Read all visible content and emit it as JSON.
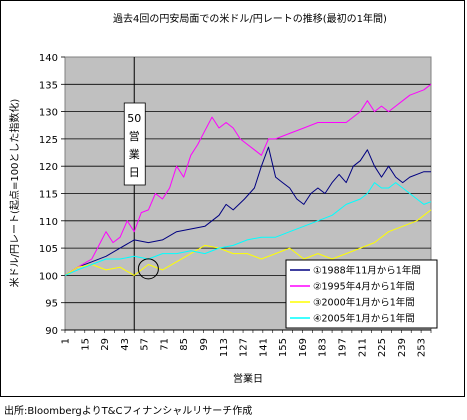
{
  "chart_data": {
    "type": "line",
    "title": "過去4回の円安局面での米ドル/円レートの推移(最初の1年間)",
    "xlabel": "営業日",
    "ylabel": "米ドル/円レート(起点=100とした指数化)",
    "ylim": [
      90,
      140
    ],
    "yticks": [
      90,
      95,
      100,
      105,
      110,
      115,
      120,
      125,
      130,
      135,
      140
    ],
    "xlim": [
      1,
      260
    ],
    "xticks": [
      1,
      15,
      29,
      43,
      57,
      71,
      85,
      99,
      113,
      127,
      141,
      155,
      169,
      183,
      197,
      211,
      225,
      239,
      253
    ],
    "grid": true,
    "legend_position": "bottom-right",
    "annotation": {
      "label": "50営業日",
      "label_chars": [
        "50",
        "営",
        "業",
        "日"
      ],
      "x": 50
    },
    "highlight_circle": {
      "x": 60,
      "y": 101.2
    },
    "series": [
      {
        "name": "①1988年11月から1年間",
        "color": "#000080",
        "points": [
          [
            1,
            100
          ],
          [
            10,
            101.5
          ],
          [
            20,
            102.5
          ],
          [
            30,
            103.5
          ],
          [
            40,
            105
          ],
          [
            50,
            106.5
          ],
          [
            60,
            106
          ],
          [
            70,
            106.5
          ],
          [
            80,
            108
          ],
          [
            90,
            108.5
          ],
          [
            100,
            109
          ],
          [
            110,
            111
          ],
          [
            115,
            113
          ],
          [
            120,
            112
          ],
          [
            128,
            114
          ],
          [
            135,
            116
          ],
          [
            140,
            120
          ],
          [
            145,
            123.5
          ],
          [
            150,
            118
          ],
          [
            155,
            117
          ],
          [
            160,
            116
          ],
          [
            165,
            114
          ],
          [
            170,
            113
          ],
          [
            175,
            115
          ],
          [
            180,
            116
          ],
          [
            185,
            115
          ],
          [
            190,
            117
          ],
          [
            195,
            118.5
          ],
          [
            200,
            117
          ],
          [
            205,
            120
          ],
          [
            210,
            121
          ],
          [
            215,
            123
          ],
          [
            220,
            120
          ],
          [
            225,
            118
          ],
          [
            230,
            120
          ],
          [
            235,
            118
          ],
          [
            240,
            117
          ],
          [
            245,
            118
          ],
          [
            255,
            119
          ],
          [
            260,
            119
          ]
        ]
      },
      {
        "name": "②1995年4月から1年間",
        "color": "#ff00ff",
        "points": [
          [
            1,
            100
          ],
          [
            10,
            101.5
          ],
          [
            20,
            103
          ],
          [
            25,
            105.5
          ],
          [
            30,
            108
          ],
          [
            35,
            106
          ],
          [
            40,
            107
          ],
          [
            45,
            110
          ],
          [
            50,
            108
          ],
          [
            55,
            111.5
          ],
          [
            60,
            112
          ],
          [
            65,
            115
          ],
          [
            70,
            114
          ],
          [
            75,
            116
          ],
          [
            80,
            120
          ],
          [
            85,
            118
          ],
          [
            90,
            122
          ],
          [
            95,
            124
          ],
          [
            100,
            126.5
          ],
          [
            105,
            129
          ],
          [
            110,
            127
          ],
          [
            115,
            128
          ],
          [
            120,
            127
          ],
          [
            125,
            125
          ],
          [
            130,
            124
          ],
          [
            135,
            123
          ],
          [
            140,
            122
          ],
          [
            145,
            125
          ],
          [
            150,
            125
          ],
          [
            160,
            126
          ],
          [
            170,
            127
          ],
          [
            180,
            128
          ],
          [
            190,
            128
          ],
          [
            200,
            128
          ],
          [
            210,
            130
          ],
          [
            215,
            132
          ],
          [
            220,
            130
          ],
          [
            225,
            131
          ],
          [
            230,
            130
          ],
          [
            235,
            131
          ],
          [
            240,
            132
          ],
          [
            245,
            133
          ],
          [
            255,
            134
          ],
          [
            260,
            135
          ]
        ]
      },
      {
        "name": "③2000年1月から1年間",
        "color": "#ffff00",
        "points": [
          [
            1,
            100
          ],
          [
            10,
            101.5
          ],
          [
            20,
            102
          ],
          [
            30,
            101
          ],
          [
            40,
            101.5
          ],
          [
            50,
            100
          ],
          [
            60,
            102
          ],
          [
            70,
            101
          ],
          [
            80,
            102.5
          ],
          [
            90,
            104
          ],
          [
            100,
            105.5
          ],
          [
            110,
            105
          ],
          [
            120,
            104
          ],
          [
            130,
            104
          ],
          [
            140,
            103
          ],
          [
            150,
            104
          ],
          [
            160,
            105
          ],
          [
            170,
            103
          ],
          [
            180,
            104
          ],
          [
            190,
            103
          ],
          [
            200,
            104
          ],
          [
            210,
            105
          ],
          [
            220,
            106
          ],
          [
            230,
            108
          ],
          [
            240,
            109
          ],
          [
            250,
            110
          ],
          [
            260,
            112
          ]
        ]
      },
      {
        "name": "④2005年1月から1年間",
        "color": "#00ffff",
        "points": [
          [
            1,
            100
          ],
          [
            10,
            101
          ],
          [
            20,
            102
          ],
          [
            30,
            103
          ],
          [
            40,
            103
          ],
          [
            50,
            103.5
          ],
          [
            60,
            103
          ],
          [
            70,
            104
          ],
          [
            80,
            104
          ],
          [
            90,
            104.5
          ],
          [
            100,
            104
          ],
          [
            110,
            105
          ],
          [
            120,
            105.5
          ],
          [
            130,
            106.5
          ],
          [
            140,
            107
          ],
          [
            150,
            107
          ],
          [
            160,
            108
          ],
          [
            170,
            109
          ],
          [
            180,
            110
          ],
          [
            190,
            111
          ],
          [
            200,
            113
          ],
          [
            210,
            114
          ],
          [
            215,
            115
          ],
          [
            220,
            117
          ],
          [
            225,
            116
          ],
          [
            230,
            116
          ],
          [
            235,
            117
          ],
          [
            240,
            116
          ],
          [
            245,
            115
          ],
          [
            250,
            114
          ],
          [
            255,
            113
          ],
          [
            260,
            113.5
          ]
        ]
      }
    ]
  },
  "source_text": "出所:BloombergよりT&Cフィナンシャルリサーチ作成"
}
